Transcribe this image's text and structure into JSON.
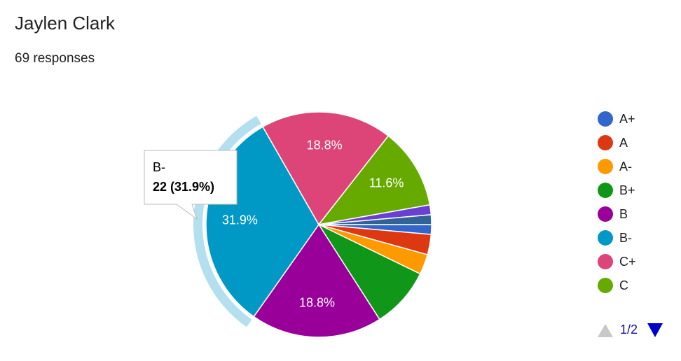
{
  "header": {
    "title": "Jaylen Clark",
    "subtitle": "69 responses"
  },
  "chart_data": {
    "type": "pie",
    "categories": [
      "A+",
      "A",
      "A-",
      "B+",
      "B",
      "B-",
      "C+",
      "C",
      null,
      null
    ],
    "values": [
      1.4,
      2.9,
      2.9,
      8.7,
      18.8,
      31.9,
      18.8,
      11.6,
      1.4,
      1.4
    ],
    "value_labels": [
      null,
      null,
      null,
      null,
      "18.8%",
      "31.9%",
      "18.8%",
      "11.6%",
      null,
      null
    ],
    "colors": [
      "#3366cc",
      "#dc3912",
      "#ff9900",
      "#109618",
      "#990099",
      "#0099c6",
      "#dd4477",
      "#66aa00",
      "#6a3fd4",
      "#316395"
    ],
    "legend": "right",
    "legend_page": "1/2",
    "highlight": 5,
    "tooltip": {
      "label": "B-",
      "text": "22 (31.9%)"
    }
  }
}
